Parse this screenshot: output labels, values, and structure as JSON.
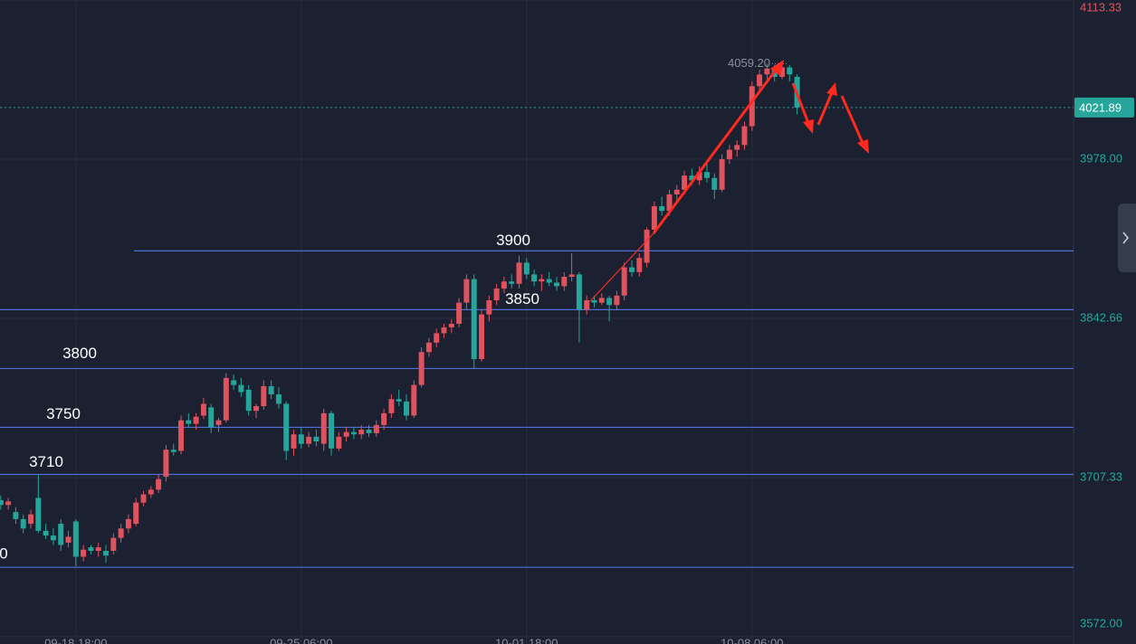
{
  "chart_data": {
    "type": "candlestick",
    "up_color": "#e0525e",
    "down_color": "#26a69a",
    "open": [
      3688,
      3684,
      3678,
      3672,
      3668,
      3690,
      3662,
      3658,
      3668,
      3652,
      3670,
      3640,
      3648,
      3645,
      3645,
      3645,
      3656,
      3664,
      3668,
      3686,
      3693,
      3697,
      3708,
      3731,
      3730,
      3756,
      3753,
      3760,
      3767,
      3752,
      3756,
      3790,
      3786,
      3782,
      3764,
      3768,
      3785,
      3778,
      3770,
      3732,
      3744,
      3736,
      3742,
      3736,
      3762,
      3732,
      3742,
      3746,
      3744,
      3748,
      3745,
      3752,
      3762,
      3774,
      3772,
      3760,
      3786,
      3814,
      3822,
      3830,
      3835,
      3838,
      3856,
      3876,
      3808,
      3846,
      3858,
      3868,
      3874,
      3872,
      3890,
      3880,
      3874,
      3876,
      3873,
      3870,
      3878,
      3880,
      3850,
      3858,
      3856,
      3860,
      3854,
      3862,
      3886,
      3882,
      3890,
      3918,
      3938,
      3934,
      3948,
      3952,
      3964,
      3960,
      3967,
      3962,
      3952,
      3978,
      3986,
      3990,
      4006,
      4040,
      4050,
      4055,
      4048,
      4056,
      4048
    ],
    "high": [
      3692,
      3690,
      3682,
      3676,
      3680,
      3710,
      3668,
      3664,
      3672,
      3662,
      3672,
      3650,
      3650,
      3652,
      3650,
      3660,
      3668,
      3676,
      3690,
      3696,
      3700,
      3710,
      3735,
      3736,
      3760,
      3762,
      3762,
      3775,
      3770,
      3758,
      3796,
      3795,
      3792,
      3786,
      3770,
      3790,
      3790,
      3784,
      3772,
      3748,
      3750,
      3746,
      3748,
      3766,
      3764,
      3746,
      3750,
      3750,
      3752,
      3752,
      3756,
      3766,
      3778,
      3782,
      3778,
      3790,
      3818,
      3826,
      3834,
      3838,
      3842,
      3860,
      3880,
      3880,
      3850,
      3862,
      3872,
      3878,
      3880,
      3896,
      3894,
      3884,
      3880,
      3882,
      3878,
      3882,
      3898,
      3882,
      3862,
      3862,
      3864,
      3862,
      3866,
      3890,
      3892,
      3898,
      3920,
      3942,
      3946,
      3952,
      3956,
      3968,
      3970,
      3972,
      3974,
      3966,
      3982,
      3990,
      3994,
      4010,
      4044,
      4054,
      4059.2,
      4058,
      4058,
      4058,
      4050
    ],
    "low": [
      3680,
      3680,
      3668,
      3660,
      3664,
      3660,
      3655,
      3650,
      3645,
      3648,
      3632,
      3636,
      3642,
      3640,
      3635,
      3642,
      3652,
      3660,
      3666,
      3683,
      3690,
      3694,
      3704,
      3726,
      3727,
      3750,
      3748,
      3757,
      3745,
      3746,
      3754,
      3782,
      3776,
      3760,
      3758,
      3765,
      3774,
      3766,
      3722,
      3726,
      3732,
      3733,
      3734,
      3730,
      3726,
      3730,
      3738,
      3740,
      3740,
      3742,
      3742,
      3748,
      3758,
      3768,
      3756,
      3758,
      3784,
      3810,
      3818,
      3826,
      3830,
      3835,
      3850,
      3800,
      3806,
      3840,
      3854,
      3864,
      3868,
      3868,
      3876,
      3870,
      3866,
      3870,
      3866,
      3866,
      3874,
      3822,
      3846,
      3852,
      3854,
      3840,
      3850,
      3858,
      3878,
      3878,
      3886,
      3914,
      3930,
      3930,
      3942,
      3948,
      3956,
      3956,
      3958,
      3944,
      3950,
      3974,
      3980,
      3986,
      4002,
      4036,
      4046,
      4044,
      4046,
      4044,
      4016
    ],
    "close": [
      3684,
      3687,
      3672,
      3664,
      3676,
      3662,
      3658,
      3654,
      3650,
      3657,
      3640,
      3646,
      3645,
      3648,
      3641,
      3656,
      3664,
      3672,
      3686,
      3693,
      3697,
      3706,
      3731,
      3729,
      3756,
      3753,
      3759,
      3770,
      3750,
      3756,
      3792,
      3786,
      3780,
      3764,
      3768,
      3785,
      3778,
      3770,
      3730,
      3744,
      3736,
      3742,
      3738,
      3762,
      3732,
      3742,
      3746,
      3744,
      3748,
      3745,
      3752,
      3762,
      3774,
      3772,
      3760,
      3786,
      3814,
      3822,
      3830,
      3835,
      3838,
      3856,
      3876,
      3808,
      3846,
      3858,
      3868,
      3874,
      3872,
      3890,
      3880,
      3874,
      3876,
      3873,
      3870,
      3878,
      3880,
      3850,
      3858,
      3856,
      3860,
      3854,
      3862,
      3886,
      3882,
      3894,
      3918,
      3938,
      3934,
      3948,
      3952,
      3964,
      3960,
      3967,
      3962,
      3952,
      3978,
      3986,
      3990,
      4006,
      4040,
      4050,
      4055,
      4048,
      4056,
      4050,
      4021.89
    ],
    "xlim": [
      -0.1,
      142.8
    ],
    "xticks": [
      {
        "value": 10,
        "label": "09-18 18:00"
      },
      {
        "value": 40,
        "label": "09-25 06:00"
      },
      {
        "value": 70,
        "label": "10-01 18:00"
      },
      {
        "value": 100,
        "label": "10-08 06:00"
      }
    ],
    "ylim": [
      3565.8,
      4113.3
    ],
    "yticks": [
      {
        "value": 3572,
        "label": "3572.00"
      },
      3707.33,
      3842.66,
      {
        "value": 3978,
        "label": "3978.00"
      },
      4113.33
    ],
    "levels": [
      3900,
      3850,
      3800,
      3750,
      3710,
      {
        "value": 3631,
        "label": "0"
      }
    ],
    "last_price": 4021.89,
    "high_label": {
      "value": 4059.2,
      "label": "4059.20"
    }
  }
}
